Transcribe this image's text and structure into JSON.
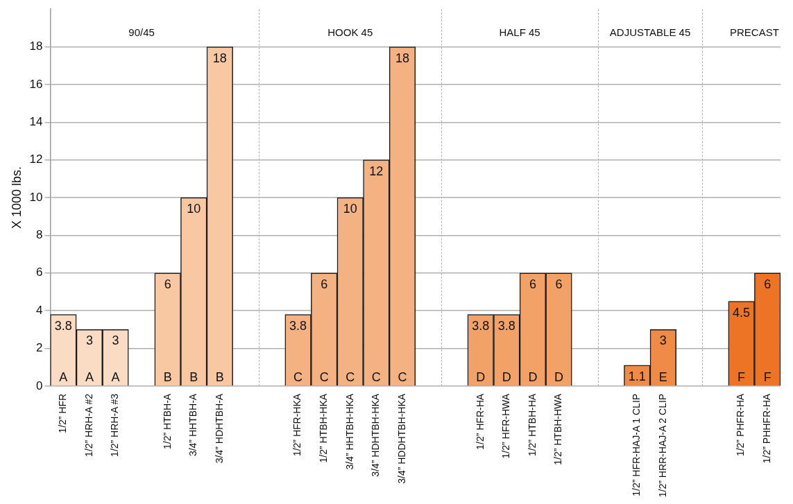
{
  "chart_data": {
    "type": "bar",
    "ylabel": "X 1000 lbs.",
    "categories": [
      "1/2” HFR",
      "1/2” HRH-A #2",
      "1/2” HRH-A #3",
      null,
      "1/2” HTBH-A",
      "3/4” HHTBH-A",
      "3/4” HDHTBH-A",
      null,
      null,
      "1/2” HFR-HKA",
      "1/2” HTBH-HKA",
      "3/4” HHTBH-HKA",
      "3/4” HDHTBH-HKA",
      "3/4” HDDHTBH-HKA",
      null,
      null,
      "1/2” HFR-HA",
      "1/2” HFR-HWA",
      "1/2” HTBH-HA",
      "1/2” HTBH-HWA",
      null,
      null,
      "1/2” HFR-HAJ-A 1 CLIP",
      "1/2” HRR-HAJ-A 2 CLIP",
      null,
      null,
      "1/2” PHFR-HA",
      "1/2” PHHFR-HA"
    ],
    "series": [
      {
        "name": "A",
        "color": "#fadcc5",
        "values": [
          3.8,
          3,
          3,
          null,
          null,
          null,
          null,
          null,
          null,
          null,
          null,
          null,
          null,
          null,
          null,
          null,
          null,
          null,
          null,
          null,
          null,
          null,
          null,
          null,
          null,
          null,
          null,
          null
        ]
      },
      {
        "name": "B",
        "color": "#f8c8a2",
        "values": [
          null,
          null,
          null,
          null,
          6,
          10,
          18,
          null,
          null,
          null,
          null,
          null,
          null,
          null,
          null,
          null,
          null,
          null,
          null,
          null,
          null,
          null,
          null,
          null,
          null,
          null,
          null,
          null
        ]
      },
      {
        "name": "C",
        "color": "#f4b283",
        "values": [
          null,
          null,
          null,
          null,
          null,
          null,
          null,
          null,
          null,
          3.8,
          6,
          10,
          12,
          18,
          null,
          null,
          null,
          null,
          null,
          null,
          null,
          null,
          null,
          null,
          null,
          null,
          null,
          null
        ]
      },
      {
        "name": "D",
        "color": "#f2a266",
        "values": [
          null,
          null,
          null,
          null,
          null,
          null,
          null,
          null,
          null,
          null,
          null,
          null,
          null,
          null,
          null,
          null,
          3.8,
          3.8,
          6,
          6,
          null,
          null,
          null,
          null,
          null,
          null,
          null,
          null
        ]
      },
      {
        "name": "E",
        "color": "#ef8b47",
        "values": [
          null,
          null,
          null,
          null,
          null,
          null,
          null,
          null,
          null,
          null,
          null,
          null,
          null,
          null,
          null,
          null,
          null,
          null,
          null,
          null,
          null,
          null,
          1.1,
          3,
          null,
          null,
          null,
          null
        ]
      },
      {
        "name": "F",
        "color": "#ec7424",
        "values": [
          null,
          null,
          null,
          null,
          null,
          null,
          null,
          null,
          null,
          null,
          null,
          null,
          null,
          null,
          null,
          null,
          null,
          null,
          null,
          null,
          null,
          null,
          null,
          null,
          null,
          null,
          4.5,
          6
        ]
      }
    ],
    "ylim": [
      0,
      20
    ],
    "yticks": [
      0,
      2,
      4,
      6,
      8,
      10,
      12,
      14,
      16,
      18
    ],
    "grid": "y",
    "legend": false,
    "data_labels": true,
    "annotations": [
      "90/45",
      "HOOK 45",
      "HALF 45",
      "ADJUSTABLE 45",
      "PRECAST"
    ]
  }
}
